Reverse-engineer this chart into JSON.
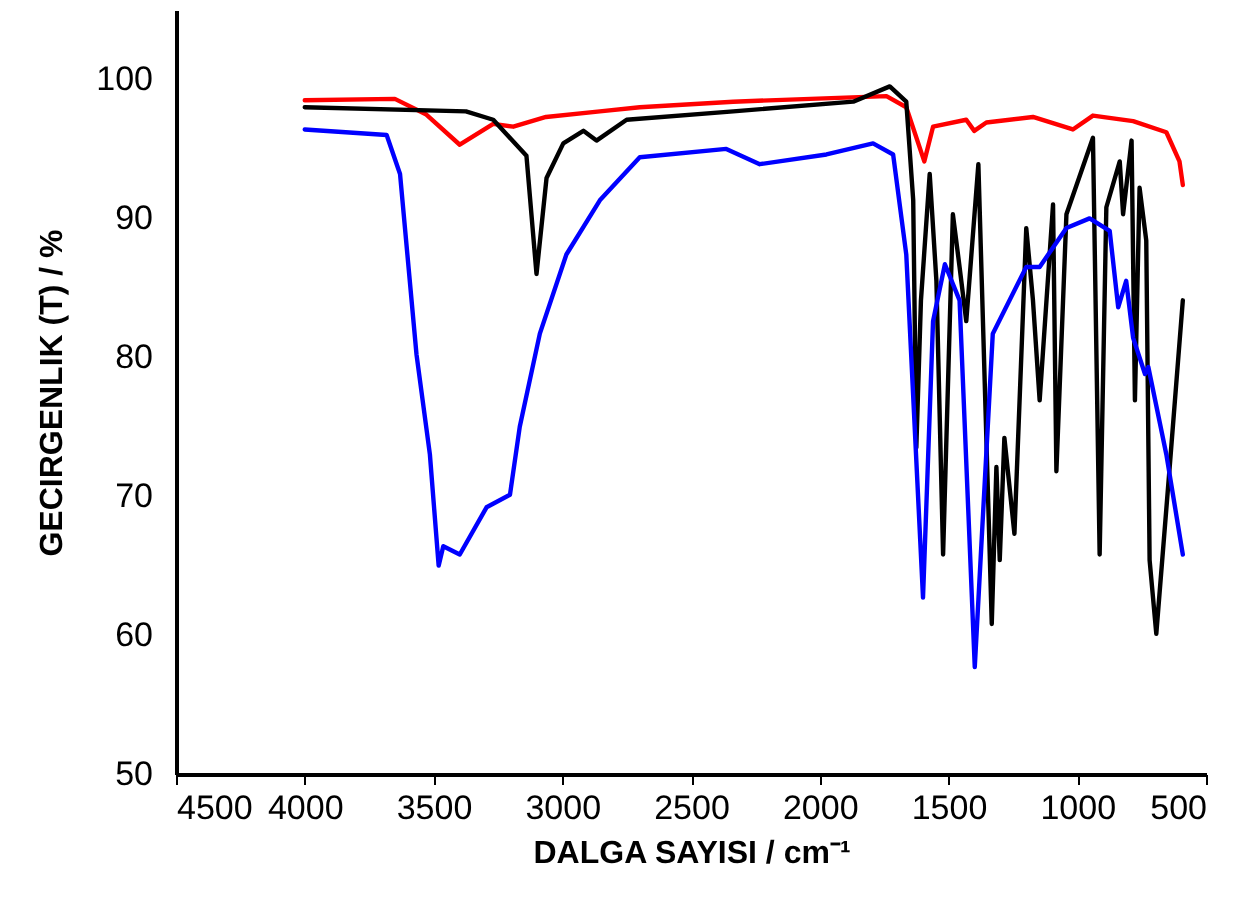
{
  "chart_data": {
    "type": "line",
    "xlabel": "DALGA SAYISI / cm⁻¹",
    "ylabel": "GECIRGENLIK (T) / %",
    "xlim": [
      4500,
      500
    ],
    "ylim": [
      50,
      105
    ],
    "xticks": [
      4500,
      4000,
      3500,
      3000,
      2500,
      2000,
      1500,
      1000,
      500
    ],
    "yticks": [
      50,
      60,
      70,
      80,
      90,
      100
    ],
    "grid": false,
    "marker": "none",
    "line_style": "solid",
    "series": [
      {
        "color": "#ff0000",
        "x": [
          4000,
          3650,
          3530,
          3398,
          3268,
          3190,
          3063,
          2854,
          2699,
          2336,
          1741,
          1664,
          1594,
          1560,
          1431,
          1400,
          1353,
          1172,
          1017,
          939,
          783,
          654,
          603,
          590
        ],
        "values": [
          98.5,
          98.6,
          97.5,
          95.3,
          96.8,
          96.6,
          97.3,
          97.7,
          98.0,
          98.4,
          98.8,
          98.0,
          94.1,
          96.6,
          97.1,
          96.3,
          96.9,
          97.3,
          96.4,
          97.4,
          97.0,
          96.2,
          94.1,
          92.4
        ]
      },
      {
        "color": "#000000",
        "x": [
          4000,
          3374,
          3268,
          3139,
          3100,
          3061,
          2996,
          2918,
          2867,
          2750,
          2336,
          1870,
          1728,
          1664,
          1637,
          1625,
          1607,
          1573,
          1547,
          1521,
          1483,
          1457,
          1431,
          1384,
          1332,
          1314,
          1301,
          1283,
          1244,
          1198,
          1172,
          1146,
          1094,
          1081,
          1042,
          939,
          913,
          887,
          835,
          822,
          789,
          776,
          758,
          732,
          719,
          693,
          641,
          590
        ],
        "values": [
          98.0,
          97.7,
          97.1,
          94.5,
          86.0,
          92.9,
          95.4,
          96.3,
          95.6,
          97.1,
          97.7,
          98.4,
          99.5,
          98.4,
          91.3,
          73.5,
          84.1,
          93.2,
          85.5,
          65.8,
          90.3,
          86.5,
          82.6,
          93.9,
          60.8,
          72.1,
          65.4,
          74.2,
          67.3,
          89.3,
          84.1,
          76.9,
          91.0,
          71.8,
          90.3,
          95.8,
          65.8,
          90.8,
          94.1,
          90.3,
          95.6,
          76.9,
          92.2,
          88.4,
          65.4,
          60.1,
          72.1,
          84.1
        ]
      },
      {
        "color": "#0000ff",
        "x": [
          4000,
          3682,
          3630,
          3566,
          3514,
          3480,
          3462,
          3398,
          3294,
          3203,
          3165,
          3087,
          2984,
          2854,
          2699,
          2363,
          2233,
          1974,
          1793,
          1715,
          1664,
          1599,
          1560,
          1514,
          1457,
          1398,
          1328,
          1198,
          1146,
          1042,
          952,
          874,
          841,
          810,
          783,
          737,
          724,
          654,
          590
        ],
        "values": [
          96.4,
          96.0,
          93.2,
          80.2,
          73.0,
          65.0,
          66.4,
          65.8,
          69.2,
          70.1,
          75.0,
          81.7,
          87.4,
          91.3,
          94.4,
          95.0,
          93.9,
          94.6,
          95.4,
          94.6,
          87.4,
          62.7,
          82.6,
          86.7,
          84.1,
          57.7,
          81.7,
          86.5,
          86.5,
          89.3,
          90.0,
          89.1,
          83.6,
          85.5,
          81.4,
          78.8,
          79.3,
          73.0,
          65.8
        ]
      }
    ]
  }
}
